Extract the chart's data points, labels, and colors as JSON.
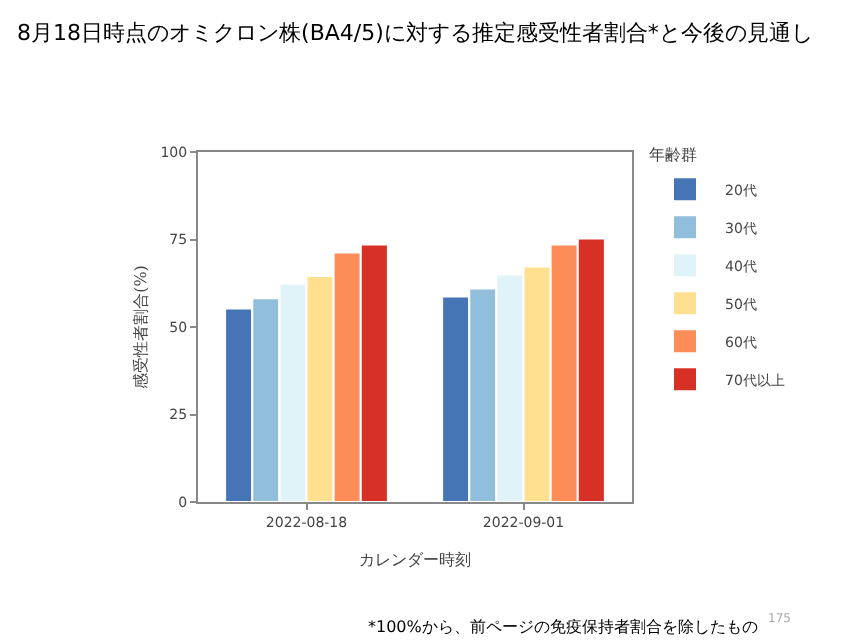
{
  "chart_data": {
    "type": "bar",
    "title": "8月18日時点のオミクロン株(BA4/5)に対する推定感受性者割合*と今後の見通し",
    "xlabel": "カレンダー時刻",
    "ylabel": "感受性者割合(%)",
    "legend_title": "年齢群",
    "categories": [
      "2022-08-18",
      "2022-09-01"
    ],
    "series": [
      {
        "name": "20代",
        "color": "#4575b4",
        "values": [
          55.3,
          58.7
        ]
      },
      {
        "name": "30代",
        "color": "#91bfdb",
        "values": [
          58.2,
          61.0
        ]
      },
      {
        "name": "40代",
        "color": "#e0f3f8",
        "values": [
          62.4,
          65.0
        ]
      },
      {
        "name": "50代",
        "color": "#fee090",
        "values": [
          64.6,
          67.3
        ]
      },
      {
        "name": "60代",
        "color": "#fc8d59",
        "values": [
          71.3,
          73.6
        ]
      },
      {
        "name": "70代以上",
        "color": "#d73027",
        "values": [
          73.6,
          75.3
        ]
      }
    ],
    "ylim": [
      0,
      100
    ],
    "yticks": [
      0,
      25,
      50,
      75,
      100
    ],
    "grid": false,
    "legend": "right",
    "annotations": [
      "*100%から、前ページの免疫保持者割合を除したもの",
      "175"
    ]
  }
}
